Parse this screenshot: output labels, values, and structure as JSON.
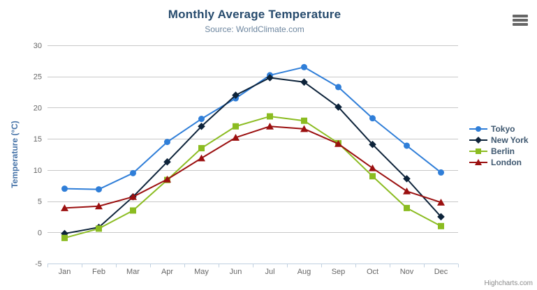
{
  "chart_data": {
    "type": "line",
    "title": "Monthly Average Temperature",
    "subtitle": "Source: WorldClimate.com",
    "xlabel": "",
    "ylabel": "Temperature (°C)",
    "categories": [
      "Jan",
      "Feb",
      "Mar",
      "Apr",
      "May",
      "Jun",
      "Jul",
      "Aug",
      "Sep",
      "Oct",
      "Nov",
      "Dec"
    ],
    "ylim": [
      -5,
      30
    ],
    "yticks": [
      -5,
      0,
      5,
      10,
      15,
      20,
      25,
      30
    ],
    "grid": true,
    "legend_position": "right",
    "series": [
      {
        "name": "Tokyo",
        "color": "#2f7ed8",
        "marker": "circle",
        "values": [
          7.0,
          6.9,
          9.5,
          14.5,
          18.2,
          21.5,
          25.2,
          26.5,
          23.3,
          18.3,
          13.9,
          9.6
        ]
      },
      {
        "name": "New York",
        "color": "#0d233a",
        "marker": "diamond",
        "values": [
          -0.2,
          0.8,
          5.7,
          11.3,
          17.0,
          22.0,
          24.8,
          24.1,
          20.1,
          14.1,
          8.6,
          2.5
        ]
      },
      {
        "name": "Berlin",
        "color": "#8bbc21",
        "marker": "square",
        "values": [
          -0.9,
          0.6,
          3.5,
          8.4,
          13.5,
          17.0,
          18.6,
          17.9,
          14.3,
          9.0,
          3.9,
          1.0
        ]
      },
      {
        "name": "London",
        "color": "#9b1010",
        "marker": "triangle",
        "values": [
          3.9,
          4.2,
          5.7,
          8.5,
          11.9,
          15.2,
          17.0,
          16.6,
          14.2,
          10.3,
          6.6,
          4.8
        ]
      }
    ],
    "colors": {
      "grid": "#c8c8c8",
      "axis_line": "#c0d0e0",
      "tick_text": "#666666"
    },
    "credits": "Highcharts.com"
  },
  "toolbar": {
    "export_menu_icon": "hamburger-icon"
  }
}
